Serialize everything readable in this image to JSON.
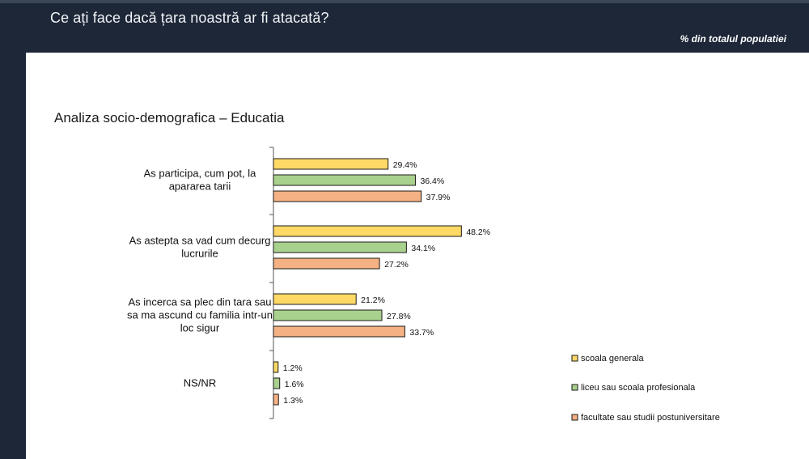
{
  "header": {
    "title": "Ce ați face dacă țara noastră ar fi atacată?",
    "note": "% din totalul populatiei"
  },
  "chart_data": {
    "type": "bar",
    "orientation": "horizontal",
    "title": "Analiza socio-demografica – Educatia",
    "xlabel": "",
    "ylabel": "",
    "xlim": [
      0,
      60
    ],
    "grid": false,
    "legend_position": "right",
    "value_suffix": "%",
    "categories": [
      [
        "As participa, cum pot, la",
        "apararea tarii"
      ],
      [
        "As astepta sa vad cum decurg",
        "lucrurile"
      ],
      [
        "As incerca sa plec din tara sau",
        "sa ma ascund cu familia intr-un",
        "loc sigur"
      ],
      [
        "NS/NR"
      ]
    ],
    "series": [
      {
        "name": "scoala generala",
        "color": "#ffd966",
        "values": [
          29.4,
          48.2,
          21.2,
          1.2
        ]
      },
      {
        "name": "liceu sau scoala profesionala",
        "color": "#a9d18e",
        "values": [
          36.4,
          34.1,
          27.8,
          1.6
        ]
      },
      {
        "name": "facultate sau studii postuniversitare",
        "color": "#f4b183",
        "values": [
          37.9,
          27.2,
          33.7,
          1.3
        ]
      }
    ]
  }
}
